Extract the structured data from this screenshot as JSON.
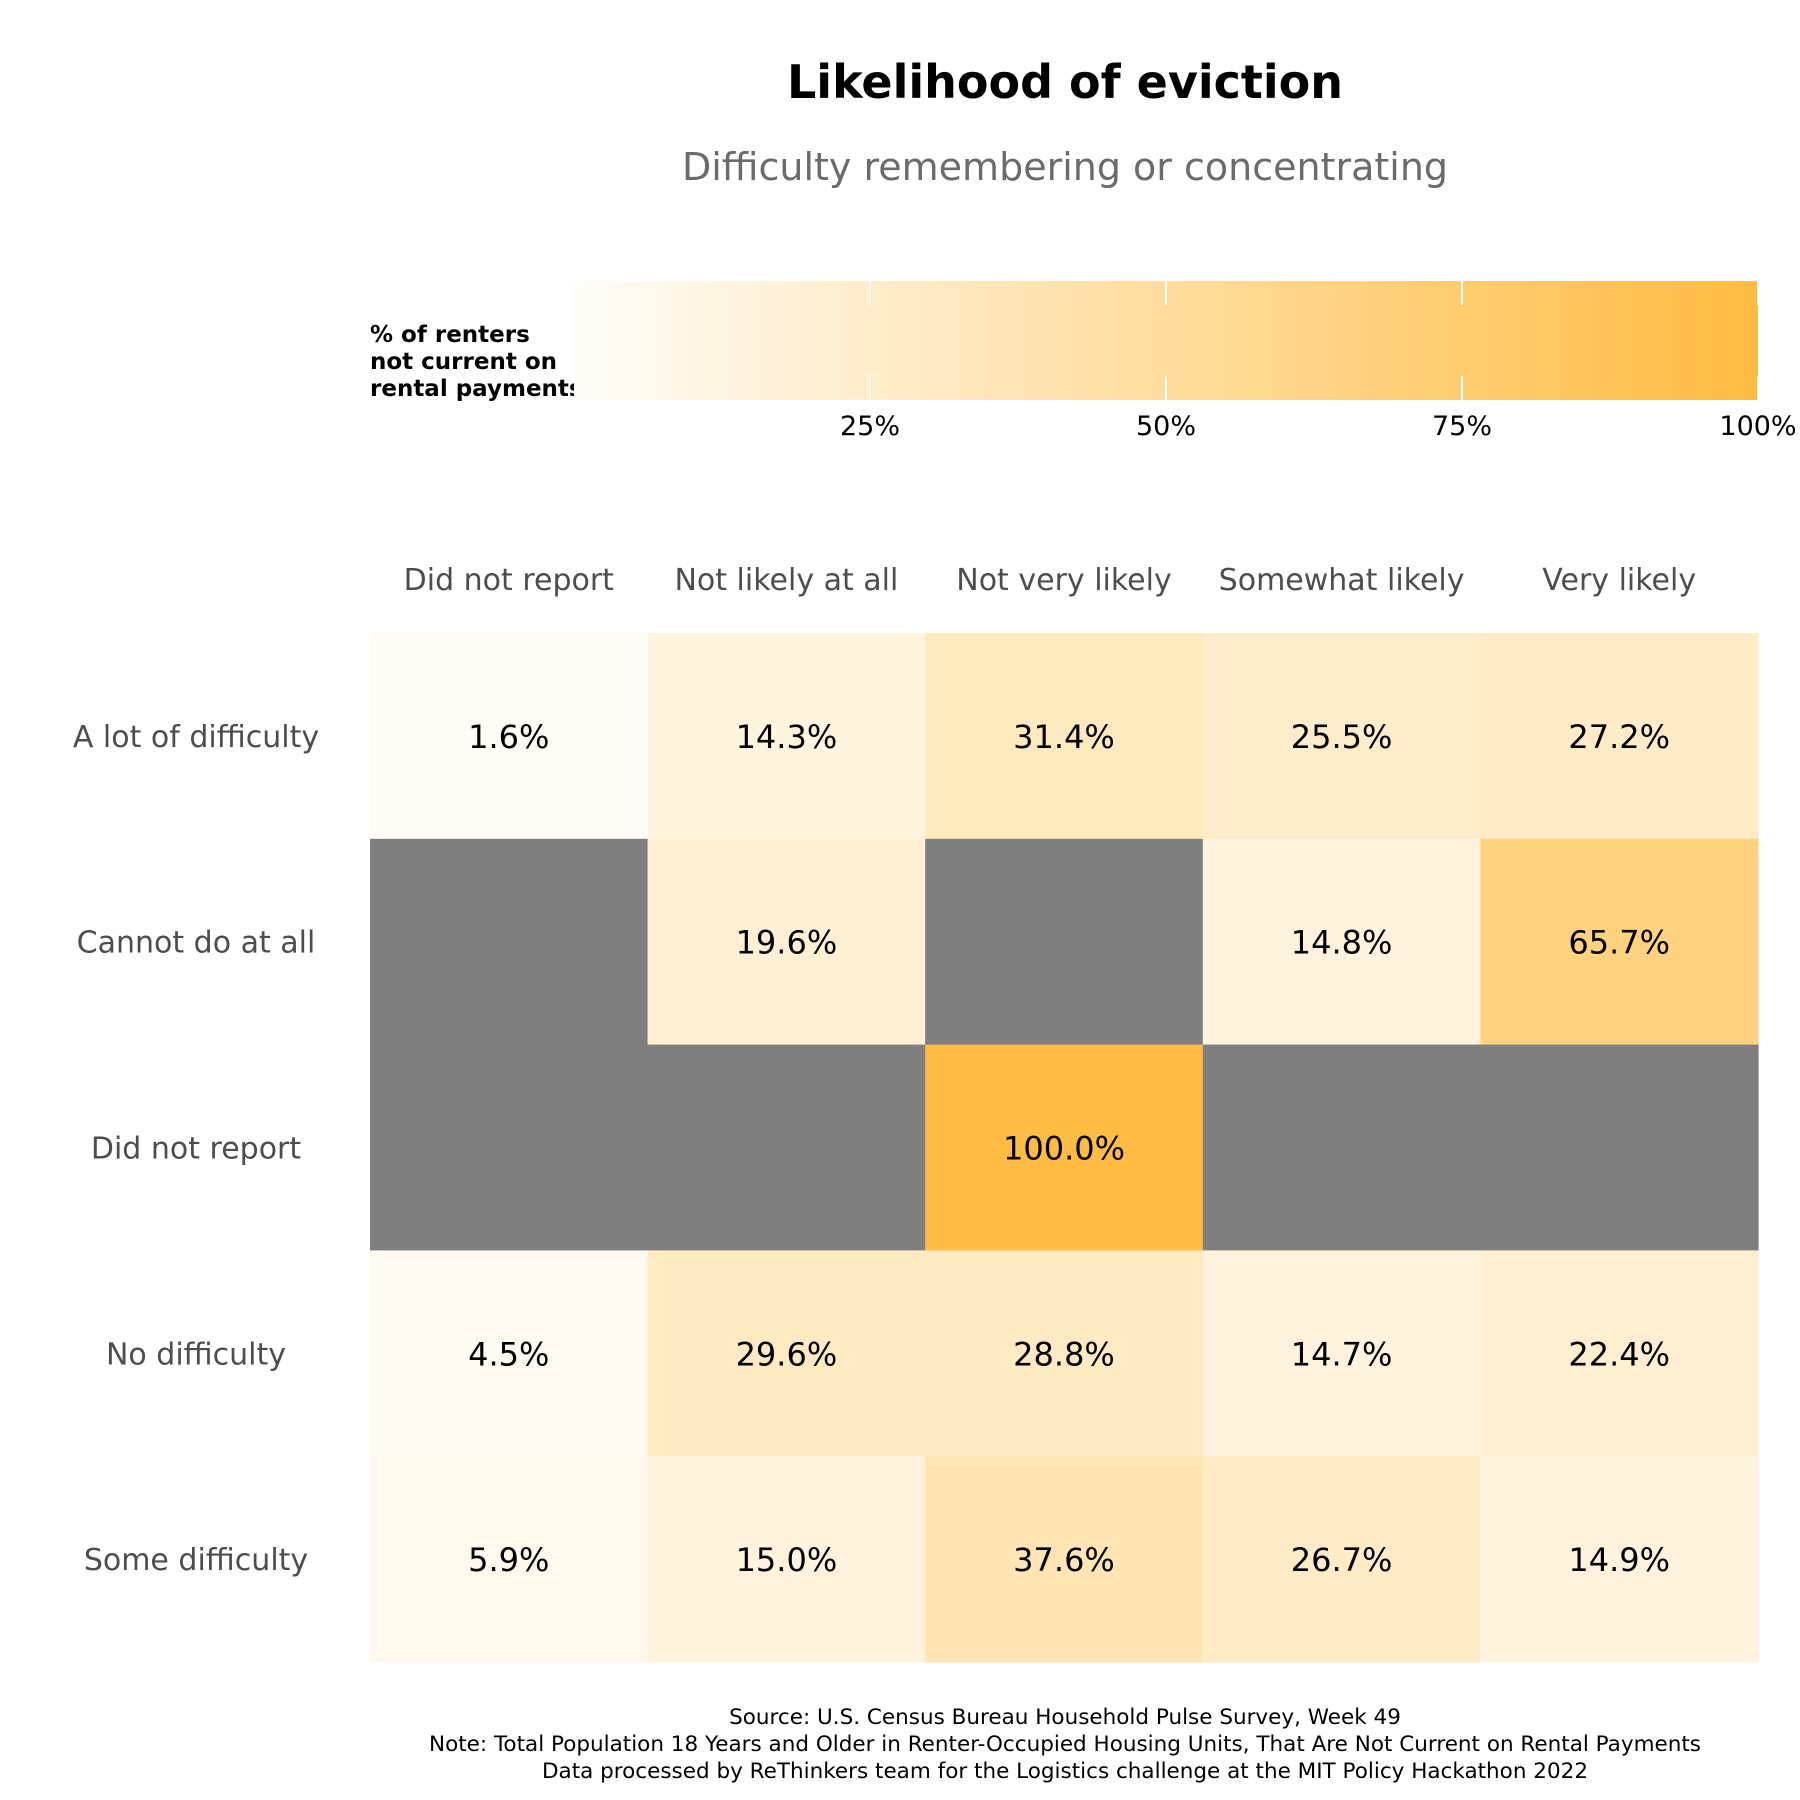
{
  "chart_data": {
    "type": "heatmap",
    "title": "Likelihood of eviction",
    "subtitle": "Difficulty remembering or concentrating",
    "columns": [
      "Did not report",
      "Not likely at all",
      "Not very likely",
      "Somewhat likely",
      "Very likely"
    ],
    "rows": [
      "A lot of difficulty",
      "Cannot do at all",
      "Did not report",
      "No difficulty",
      "Some difficulty"
    ],
    "values": [
      [
        1.6,
        14.3,
        31.4,
        25.5,
        27.2
      ],
      [
        null,
        19.6,
        null,
        14.8,
        65.7
      ],
      [
        null,
        null,
        100.0,
        null,
        null
      ],
      [
        4.5,
        29.6,
        28.8,
        14.7,
        22.4
      ],
      [
        5.9,
        15.0,
        37.6,
        26.7,
        14.9
      ]
    ],
    "value_labels": [
      [
        "1.6%",
        "14.3%",
        "31.4%",
        "25.5%",
        "27.2%"
      ],
      [
        "",
        "19.6%",
        "",
        "14.8%",
        "65.7%"
      ],
      [
        "",
        "",
        "100.0%",
        "",
        ""
      ],
      [
        "4.5%",
        "29.6%",
        "28.8%",
        "14.7%",
        "22.4%"
      ],
      [
        "5.9%",
        "15.0%",
        "37.6%",
        "26.7%",
        "14.9%"
      ]
    ],
    "legend": {
      "title_lines": [
        "% of renters",
        "not current on",
        "rental payments"
      ],
      "range": [
        0,
        100
      ],
      "ticks": [
        25,
        50,
        75,
        100
      ],
      "tick_labels": [
        "25%",
        "50%",
        "75%",
        "100%"
      ],
      "placement": "top",
      "orientation": "horizontal"
    },
    "colors": {
      "low": "#fffdf8",
      "high": "#ffbc42",
      "missing": "#7f7f7f"
    },
    "caption_lines": [
      "Source: U.S. Census Bureau Household Pulse Survey, Week 49",
      "Note: Total Population 18 Years and Older in Renter-Occupied Housing Units, That Are Not Current on Rental Payments",
      "Data processed by ReThinkers team for the Logistics challenge at the MIT Policy Hackathon 2022"
    ],
    "grid": false
  }
}
